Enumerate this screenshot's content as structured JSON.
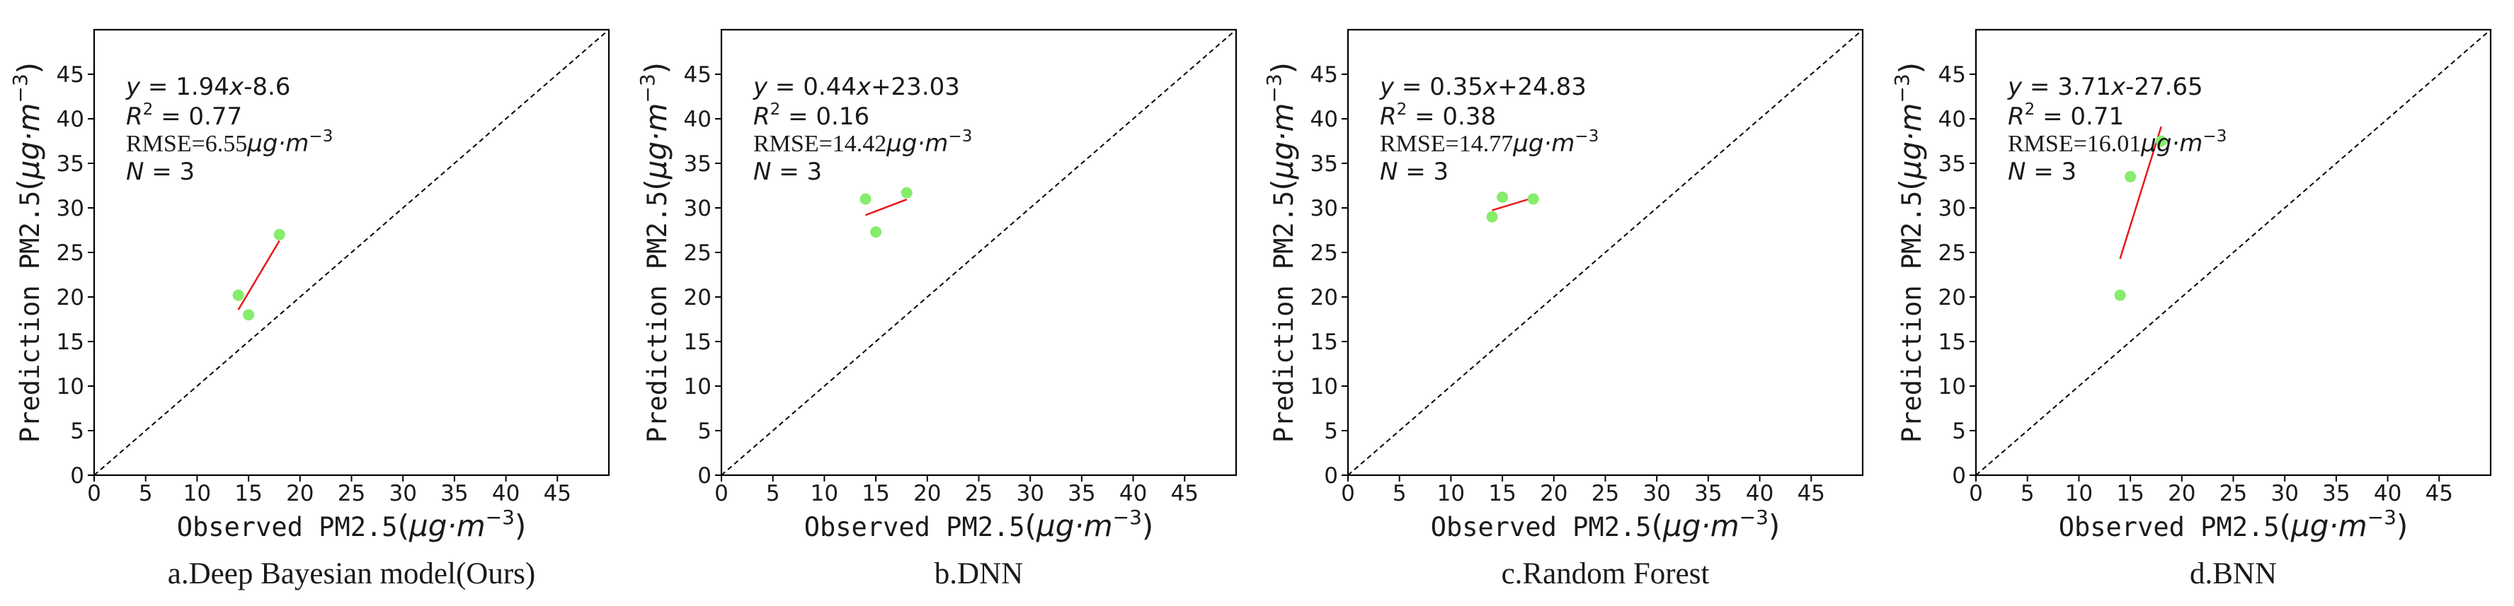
{
  "chart_data": [
    {
      "type": "scatter",
      "caption": "a.Deep Bayesian model(Ours)",
      "xlabel_prefix": "Observed PM2.5",
      "ylabel_prefix": "Prediction PM2.5",
      "unit": "μg·m",
      "unit_exp": "−3",
      "x_ticks": [
        0,
        5,
        10,
        15,
        20,
        25,
        30,
        35,
        40,
        45
      ],
      "y_ticks": [
        0,
        5,
        10,
        15,
        20,
        25,
        30,
        35,
        40,
        45
      ],
      "xlim": [
        0,
        50
      ],
      "ylim": [
        0,
        50
      ],
      "points": [
        {
          "x": 14,
          "y": 20.2
        },
        {
          "x": 15,
          "y": 18
        },
        {
          "x": 18,
          "y": 27
        }
      ],
      "fit_slope": 1.94,
      "fit_intercept": -8.6,
      "fit_x_range": [
        14,
        18
      ],
      "eq_text": "1.94",
      "eq_tail": "-8.6",
      "r2": "0.77",
      "rmse": "6.55",
      "n": "3",
      "point_color": "#86ec6c",
      "fit_color": "#e8191b"
    },
    {
      "type": "scatter",
      "caption": "b.DNN",
      "xlabel_prefix": "Observed PM2.5",
      "ylabel_prefix": "Prediction PM2.5",
      "unit": "μg·m",
      "unit_exp": "−3",
      "x_ticks": [
        0,
        5,
        10,
        15,
        20,
        25,
        30,
        35,
        40,
        45
      ],
      "y_ticks": [
        0,
        5,
        10,
        15,
        20,
        25,
        30,
        35,
        40,
        45
      ],
      "xlim": [
        0,
        50
      ],
      "ylim": [
        0,
        50
      ],
      "points": [
        {
          "x": 14,
          "y": 31
        },
        {
          "x": 15,
          "y": 27.3
        },
        {
          "x": 18,
          "y": 31.7
        }
      ],
      "fit_slope": 0.44,
      "fit_intercept": 23.03,
      "fit_x_range": [
        14,
        18
      ],
      "eq_text": "0.44",
      "eq_tail": "+23.03",
      "r2": "0.16",
      "rmse": "14.42",
      "n": "3",
      "point_color": "#86ec6c",
      "fit_color": "#e8191b"
    },
    {
      "type": "scatter",
      "caption": "c.Random Forest",
      "xlabel_prefix": "Observed PM2.5",
      "ylabel_prefix": "Prediction PM2.5",
      "unit": "μg·m",
      "unit_exp": "−3",
      "x_ticks": [
        0,
        5,
        10,
        15,
        20,
        25,
        30,
        35,
        40,
        45
      ],
      "y_ticks": [
        0,
        5,
        10,
        15,
        20,
        25,
        30,
        35,
        40,
        45
      ],
      "xlim": [
        0,
        50
      ],
      "ylim": [
        0,
        50
      ],
      "points": [
        {
          "x": 14,
          "y": 29
        },
        {
          "x": 15,
          "y": 31.2
        },
        {
          "x": 18,
          "y": 31
        }
      ],
      "fit_slope": 0.35,
      "fit_intercept": 24.83,
      "fit_x_range": [
        14,
        18
      ],
      "eq_text": "0.35",
      "eq_tail": "+24.83",
      "r2": "0.38",
      "rmse": "14.77",
      "n": "3",
      "point_color": "#86ec6c",
      "fit_color": "#e8191b"
    },
    {
      "type": "scatter",
      "caption": "d.BNN",
      "xlabel_prefix": "Observed PM2.5",
      "ylabel_prefix": "Prediction PM2.5",
      "unit": "μg·m",
      "unit_exp": "−3",
      "x_ticks": [
        0,
        5,
        10,
        15,
        20,
        25,
        30,
        35,
        40,
        45
      ],
      "y_ticks": [
        0,
        5,
        10,
        15,
        20,
        25,
        30,
        35,
        40,
        45
      ],
      "xlim": [
        0,
        50
      ],
      "ylim": [
        0,
        50
      ],
      "points": [
        {
          "x": 14,
          "y": 20.2
        },
        {
          "x": 15,
          "y": 33.5
        },
        {
          "x": 18,
          "y": 37.5
        }
      ],
      "fit_slope": 3.71,
      "fit_intercept": -27.65,
      "fit_x_range": [
        14,
        18
      ],
      "eq_text": "3.71",
      "eq_tail": "-27.65",
      "r2": "0.71",
      "rmse": "16.01",
      "n": "3",
      "point_color": "#86ec6c",
      "fit_color": "#e8191b"
    }
  ]
}
